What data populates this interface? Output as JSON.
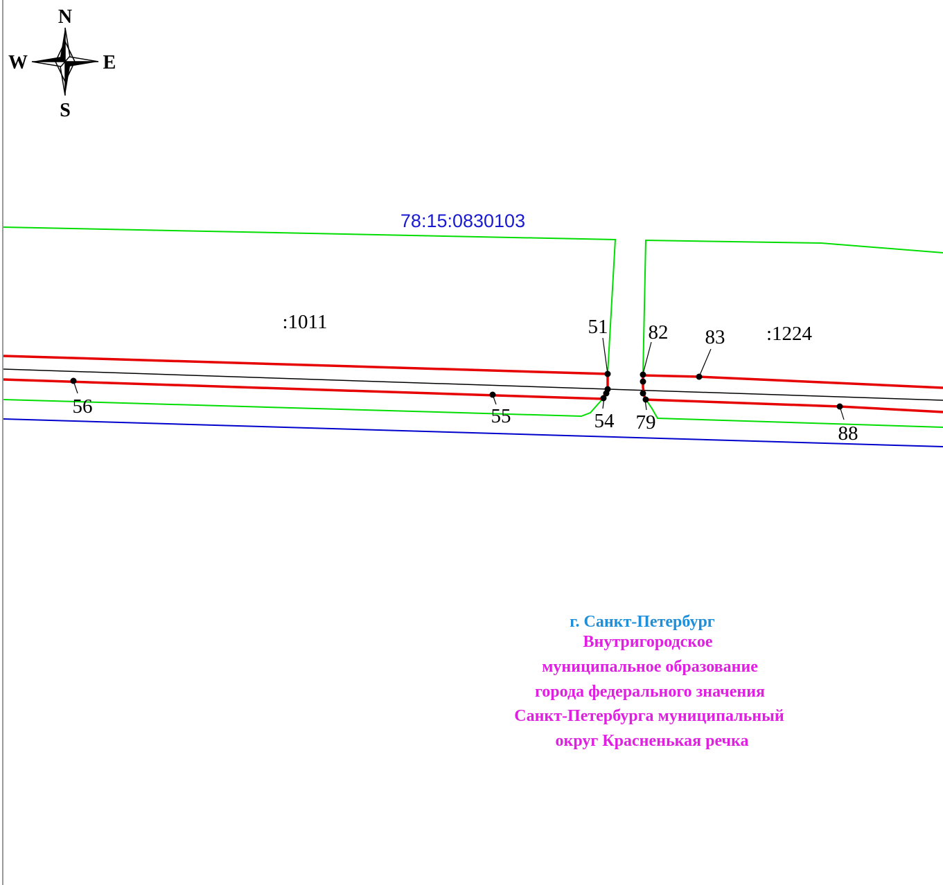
{
  "compass": {
    "north": "N",
    "south": "S",
    "west": "W",
    "east": "E"
  },
  "block_label": "78:15:0830103",
  "parcels": {
    "left": ":1011",
    "right": ":1224"
  },
  "points": {
    "p51": "51",
    "p82": "82",
    "p83": "83",
    "p56": "56",
    "p55": "55",
    "p54": "54",
    "p79": "79",
    "p88": "88"
  },
  "municipality": {
    "city": "г. Санкт-Петербург",
    "lines": [
      "Внутригородское",
      "муниципальное образование",
      "города федерального значения",
      "Санкт-Петербурга муниципальный",
      "округ Красненькая речка"
    ]
  },
  "colors": {
    "parcel_boundary": "#00dd00",
    "red_line": "#e60000",
    "block_boundary": "#0000cc",
    "block_label": "#1a1ad0",
    "city_label": "#1e8fd8",
    "municipality_label": "#e020e0",
    "center_line": "#000000"
  }
}
